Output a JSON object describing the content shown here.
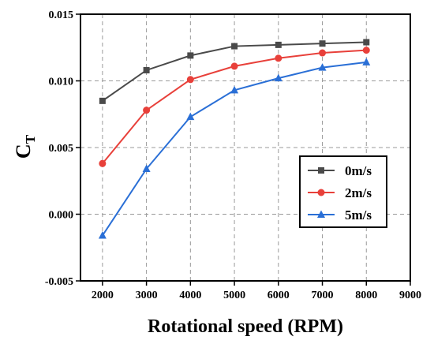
{
  "chart_data": {
    "type": "line",
    "x": [
      2000,
      3000,
      4000,
      5000,
      6000,
      7000,
      8000
    ],
    "xlim": [
      1500,
      9000
    ],
    "xticks": [
      2000,
      3000,
      4000,
      5000,
      6000,
      7000,
      8000,
      9000
    ],
    "ylim": [
      -0.005,
      0.015
    ],
    "yticks": [
      -0.005,
      0.0,
      0.005,
      0.01,
      0.015
    ],
    "ytick_labels": [
      "-0.005",
      "0.000",
      "0.005",
      "0.010",
      "0.015"
    ],
    "xlabel": "Rotational speed (RPM)",
    "ylabel_main": "C",
    "ylabel_sub": "T",
    "grid": "dashed",
    "legend_position": "lower-right",
    "series": [
      {
        "name": "0m/s",
        "color": "#4a4a4a",
        "marker": "square",
        "values": [
          0.0085,
          0.0108,
          0.0119,
          0.0126,
          0.0127,
          0.0128,
          0.0129
        ]
      },
      {
        "name": "2m/s",
        "color": "#e8403a",
        "marker": "circle",
        "values": [
          0.0038,
          0.0078,
          0.0101,
          0.0111,
          0.0117,
          0.0121,
          0.0123
        ]
      },
      {
        "name": "5m/s",
        "color": "#2a6fd6",
        "marker": "triangle",
        "values": [
          -0.0016,
          0.0034,
          0.0073,
          0.0093,
          0.0102,
          0.011,
          0.0114
        ]
      }
    ]
  }
}
